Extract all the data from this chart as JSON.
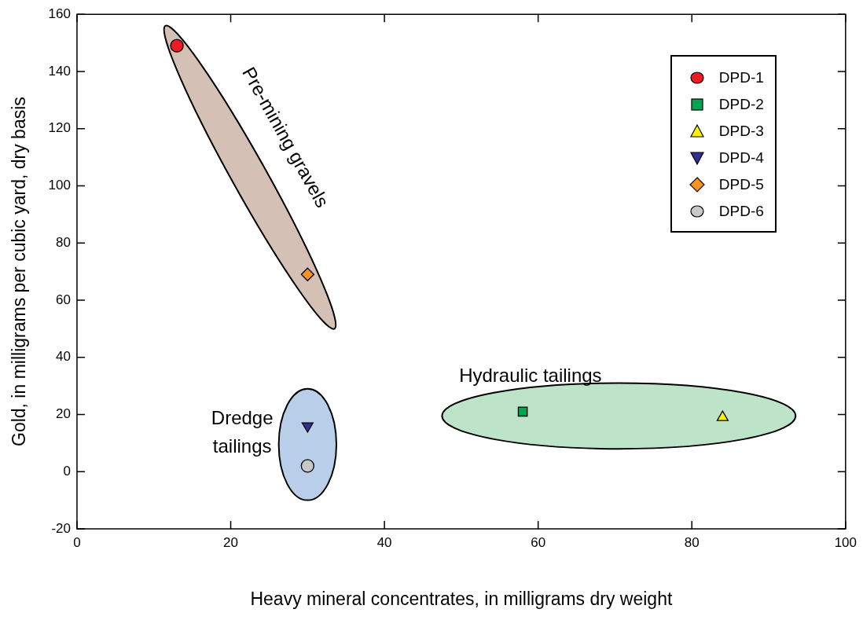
{
  "chart_data": {
    "type": "scatter",
    "xlabel": "Heavy mineral concentrates, in milligrams dry weight",
    "ylabel": "Gold, in milligrams per cubic yard, dry basis",
    "xlim": [
      0,
      100
    ],
    "xticks": [
      0,
      20,
      40,
      60,
      80,
      100
    ],
    "ylim": [
      -20,
      160
    ],
    "yticks": [
      -20,
      0,
      20,
      40,
      60,
      80,
      100,
      120,
      140,
      160
    ],
    "grid": false,
    "legend": "top right",
    "series": [
      {
        "name": "DPD-1",
        "color": "#ed1c24",
        "marker": "circle",
        "x": [
          13
        ],
        "values": [
          149
        ]
      },
      {
        "name": "DPD-2",
        "color": "#00a651",
        "marker": "square",
        "x": [
          58
        ],
        "values": [
          21
        ]
      },
      {
        "name": "DPD-3",
        "color": "#fff200",
        "marker": "triangle",
        "x": [
          84
        ],
        "values": [
          19
        ]
      },
      {
        "name": "DPD-4",
        "color": "#2e3192",
        "marker": "triangle-down",
        "x": [
          30
        ],
        "values": [
          16
        ]
      },
      {
        "name": "DPD-5",
        "color": "#f7941d",
        "marker": "diamond",
        "x": [
          30
        ],
        "values": [
          69
        ]
      },
      {
        "name": "DPD-6",
        "color": "#c7c8ca",
        "x": [
          30
        ],
        "values": [
          2
        ]
      }
    ],
    "annotations": [
      "Pre-mining gravels",
      "Hydraulic tailings",
      "Dredge tailings"
    ]
  }
}
